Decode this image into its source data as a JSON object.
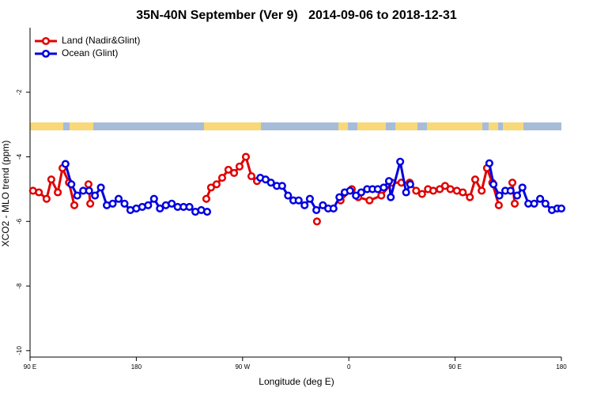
{
  "chart_data": {
    "type": "line",
    "title": "35N-40N September (Ver 9)   2014-09-06 to 2018-12-31",
    "xlabel": "Longitude (deg E)",
    "ylabel": "XCO2 - MLO trend (ppm)",
    "xlim": [
      90,
      540
    ],
    "xticks": [
      {
        "value": 90,
        "label": "90 E"
      },
      180,
      {
        "value": 270,
        "label": "90 W"
      },
      {
        "value": 360,
        "label": "0"
      },
      {
        "value": 450,
        "label": "90 E"
      },
      {
        "value": 540,
        "label": "180"
      }
    ],
    "ylim": [
      -10.2,
      0
    ],
    "yticks": [
      -10,
      -8,
      -6,
      -4,
      -2
    ],
    "legend": "top-left",
    "series": [
      {
        "name": "Land (Nadir&Glint)",
        "color": "#e00000",
        "x": [
          92.5,
          97.5,
          104,
          108,
          113.5,
          117.5,
          123,
          127.5,
          null,
          139.5,
          141,
          null,
          239.3,
          243.3,
          248,
          252.7,
          258,
          262.8,
          267.4,
          272.8,
          277.5,
          282.2,
          null,
          333,
          null,
          353,
          362.5,
          368,
          377.5,
          387.5,
          396.5,
          404.5,
          411.5,
          417,
          422,
          427,
          431.5,
          437,
          441.5,
          446,
          451.5,
          456.5,
          462.5,
          467,
          472.5,
          477,
          481.5,
          487,
          null,
          498.5,
          500.5
        ],
        "values": [
          -5.05,
          -5.1,
          -5.3,
          -4.7,
          -5.1,
          -4.35,
          -4.8,
          -5.5,
          null,
          -4.85,
          -5.45,
          null,
          -5.3,
          -4.95,
          -4.85,
          -4.65,
          -4.4,
          -4.5,
          -4.3,
          -4.0,
          -4.6,
          -4.75,
          null,
          -6.0,
          null,
          -5.35,
          -5.0,
          -5.25,
          -5.35,
          -5.2,
          -4.8,
          -4.8,
          -4.8,
          -5.05,
          -5.15,
          -5.0,
          -5.05,
          -5.0,
          -4.9,
          -5.0,
          -5.05,
          -5.1,
          -5.25,
          -4.7,
          -5.05,
          -4.35,
          -4.8,
          -5.5,
          null,
          -4.8,
          -5.45
        ]
      },
      {
        "name": "Ocean (Glint)",
        "color": "#0000e0",
        "x": [
          120,
          125,
          130,
          135,
          140,
          145,
          150,
          155,
          160,
          165,
          170,
          175,
          180,
          185,
          190,
          195,
          200,
          205,
          210,
          215,
          220,
          225,
          230,
          235,
          240,
          null,
          285,
          289.5,
          294,
          299,
          303.5,
          308.5,
          313,
          317.5,
          322.5,
          327,
          332.5,
          338,
          342.5,
          347,
          352,
          356.5,
          361,
          366,
          370.5,
          375.5,
          380,
          384.5,
          389.5,
          394,
          395.5,
          403.5,
          408.5,
          412,
          null,
          479,
          482.5,
          487.5,
          492.5,
          497,
          502.5,
          507,
          512,
          517,
          522,
          526.5,
          532,
          536.5,
          540
        ],
        "values": [
          -4.22,
          -4.85,
          -5.2,
          -5.05,
          -5.05,
          -5.2,
          -4.95,
          -5.5,
          -5.45,
          -5.3,
          -5.45,
          -5.65,
          -5.6,
          -5.55,
          -5.5,
          -5.3,
          -5.6,
          -5.5,
          -5.45,
          -5.55,
          -5.55,
          -5.55,
          -5.7,
          -5.65,
          -5.7,
          null,
          -4.65,
          -4.7,
          -4.8,
          -4.9,
          -4.9,
          -5.2,
          -5.35,
          -5.35,
          -5.5,
          -5.3,
          -5.65,
          -5.5,
          -5.6,
          -5.6,
          -5.25,
          -5.1,
          -5.05,
          -5.2,
          -5.1,
          -5.0,
          -5.0,
          -5.0,
          -4.95,
          -4.75,
          -5.25,
          -4.15,
          -5.1,
          -4.85,
          null,
          -4.2,
          -4.85,
          -5.2,
          -5.05,
          -5.05,
          -5.2,
          -4.95,
          -5.45,
          -5.45,
          -5.3,
          -5.45,
          -5.65,
          -5.6,
          -5.6
        ]
      }
    ]
  }
}
